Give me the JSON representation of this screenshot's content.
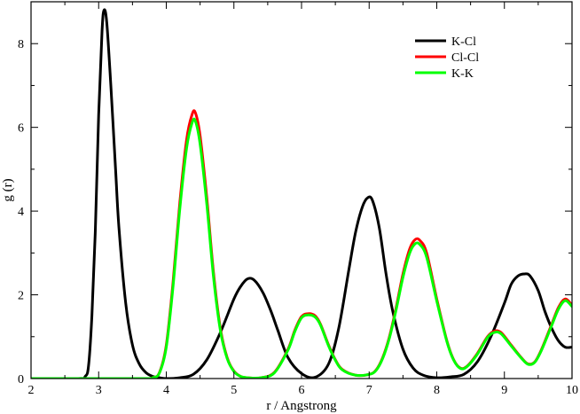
{
  "chart_data": {
    "type": "line",
    "title": "",
    "xlabel": "r / Angstrong",
    "ylabel": "g (r)",
    "xlim": [
      2,
      10
    ],
    "ylim": [
      0,
      9
    ],
    "xticks": [
      2,
      3,
      4,
      5,
      6,
      7,
      8,
      9,
      10
    ],
    "yticks": [
      0,
      2,
      4,
      6,
      8
    ],
    "grid": false,
    "legend_position": "top-right",
    "series": [
      {
        "name": "K-Cl",
        "color": "#000000",
        "x": [
          2.0,
          2.7,
          2.8,
          2.85,
          2.9,
          2.95,
          3.0,
          3.05,
          3.08,
          3.12,
          3.18,
          3.25,
          3.3,
          3.4,
          3.5,
          3.6,
          3.7,
          3.8,
          3.9,
          4.0,
          4.2,
          4.4,
          4.6,
          4.8,
          5.0,
          5.1,
          5.2,
          5.3,
          5.43,
          5.55,
          5.65,
          5.8,
          6.0,
          6.2,
          6.4,
          6.55,
          6.7,
          6.8,
          6.9,
          6.98,
          7.05,
          7.15,
          7.25,
          7.35,
          7.5,
          7.65,
          7.8,
          8.0,
          8.2,
          8.4,
          8.6,
          8.8,
          9.0,
          9.1,
          9.2,
          9.3,
          9.38,
          9.5,
          9.6,
          9.7,
          9.8,
          9.9,
          10.0
        ],
        "values": [
          0.0,
          0.0,
          0.05,
          0.3,
          1.5,
          3.5,
          6.3,
          8.3,
          8.8,
          8.5,
          7.0,
          5.0,
          3.6,
          1.8,
          0.8,
          0.35,
          0.14,
          0.05,
          0.02,
          0.0,
          0.02,
          0.1,
          0.45,
          1.1,
          1.9,
          2.2,
          2.38,
          2.35,
          2.05,
          1.6,
          1.15,
          0.5,
          0.12,
          0.03,
          0.35,
          1.2,
          2.6,
          3.5,
          4.1,
          4.32,
          4.25,
          3.6,
          2.5,
          1.6,
          0.7,
          0.25,
          0.08,
          0.02,
          0.04,
          0.1,
          0.4,
          1.0,
          1.8,
          2.25,
          2.45,
          2.5,
          2.45,
          2.1,
          1.6,
          1.2,
          0.9,
          0.75,
          0.75
        ]
      },
      {
        "name": "Cl-Cl",
        "color": "#ff0000",
        "x": [
          2.0,
          3.6,
          3.8,
          3.9,
          4.0,
          4.1,
          4.2,
          4.3,
          4.38,
          4.43,
          4.5,
          4.6,
          4.7,
          4.8,
          4.9,
          5.0,
          5.1,
          5.2,
          5.4,
          5.6,
          5.8,
          5.9,
          6.0,
          6.1,
          6.2,
          6.28,
          6.4,
          6.5,
          6.6,
          6.8,
          7.0,
          7.1,
          7.2,
          7.3,
          7.4,
          7.5,
          7.6,
          7.68,
          7.75,
          7.85,
          8.0,
          8.15,
          8.25,
          8.35,
          8.45,
          8.6,
          8.75,
          8.85,
          8.95,
          9.1,
          9.25,
          9.35,
          9.45,
          9.55,
          9.7,
          9.8,
          9.9,
          10.0
        ],
        "values": [
          0.0,
          0.0,
          0.02,
          0.15,
          0.8,
          2.3,
          4.2,
          5.7,
          6.3,
          6.35,
          5.8,
          4.3,
          2.5,
          1.2,
          0.5,
          0.18,
          0.05,
          0.02,
          0.02,
          0.15,
          0.7,
          1.15,
          1.48,
          1.55,
          1.5,
          1.3,
          0.8,
          0.45,
          0.22,
          0.08,
          0.1,
          0.2,
          0.5,
          1.0,
          1.7,
          2.5,
          3.1,
          3.32,
          3.3,
          3.0,
          1.9,
          0.9,
          0.45,
          0.25,
          0.3,
          0.6,
          1.0,
          1.13,
          1.1,
          0.8,
          0.5,
          0.35,
          0.4,
          0.7,
          1.3,
          1.7,
          1.9,
          1.75
        ]
      },
      {
        "name": "K-K",
        "color": "#00ff00",
        "x": [
          2.0,
          3.6,
          3.8,
          3.9,
          4.0,
          4.1,
          4.2,
          4.3,
          4.38,
          4.43,
          4.5,
          4.6,
          4.7,
          4.8,
          4.9,
          5.0,
          5.1,
          5.2,
          5.4,
          5.6,
          5.8,
          5.9,
          6.0,
          6.1,
          6.2,
          6.28,
          6.4,
          6.5,
          6.6,
          6.8,
          7.0,
          7.1,
          7.2,
          7.3,
          7.4,
          7.5,
          7.6,
          7.68,
          7.75,
          7.85,
          8.0,
          8.15,
          8.25,
          8.35,
          8.45,
          8.6,
          8.75,
          8.85,
          8.95,
          9.1,
          9.25,
          9.35,
          9.45,
          9.55,
          9.7,
          9.8,
          9.9,
          10.0
        ],
        "values": [
          0.0,
          0.0,
          0.02,
          0.14,
          0.75,
          2.2,
          4.05,
          5.5,
          6.1,
          6.15,
          5.6,
          4.15,
          2.4,
          1.15,
          0.48,
          0.17,
          0.05,
          0.02,
          0.02,
          0.14,
          0.68,
          1.12,
          1.45,
          1.52,
          1.47,
          1.28,
          0.78,
          0.44,
          0.21,
          0.08,
          0.1,
          0.19,
          0.48,
          0.97,
          1.65,
          2.42,
          3.0,
          3.22,
          3.2,
          2.9,
          1.85,
          0.88,
          0.44,
          0.24,
          0.29,
          0.58,
          0.98,
          1.1,
          1.07,
          0.78,
          0.49,
          0.34,
          0.39,
          0.68,
          1.27,
          1.66,
          1.86,
          1.72
        ]
      }
    ]
  }
}
